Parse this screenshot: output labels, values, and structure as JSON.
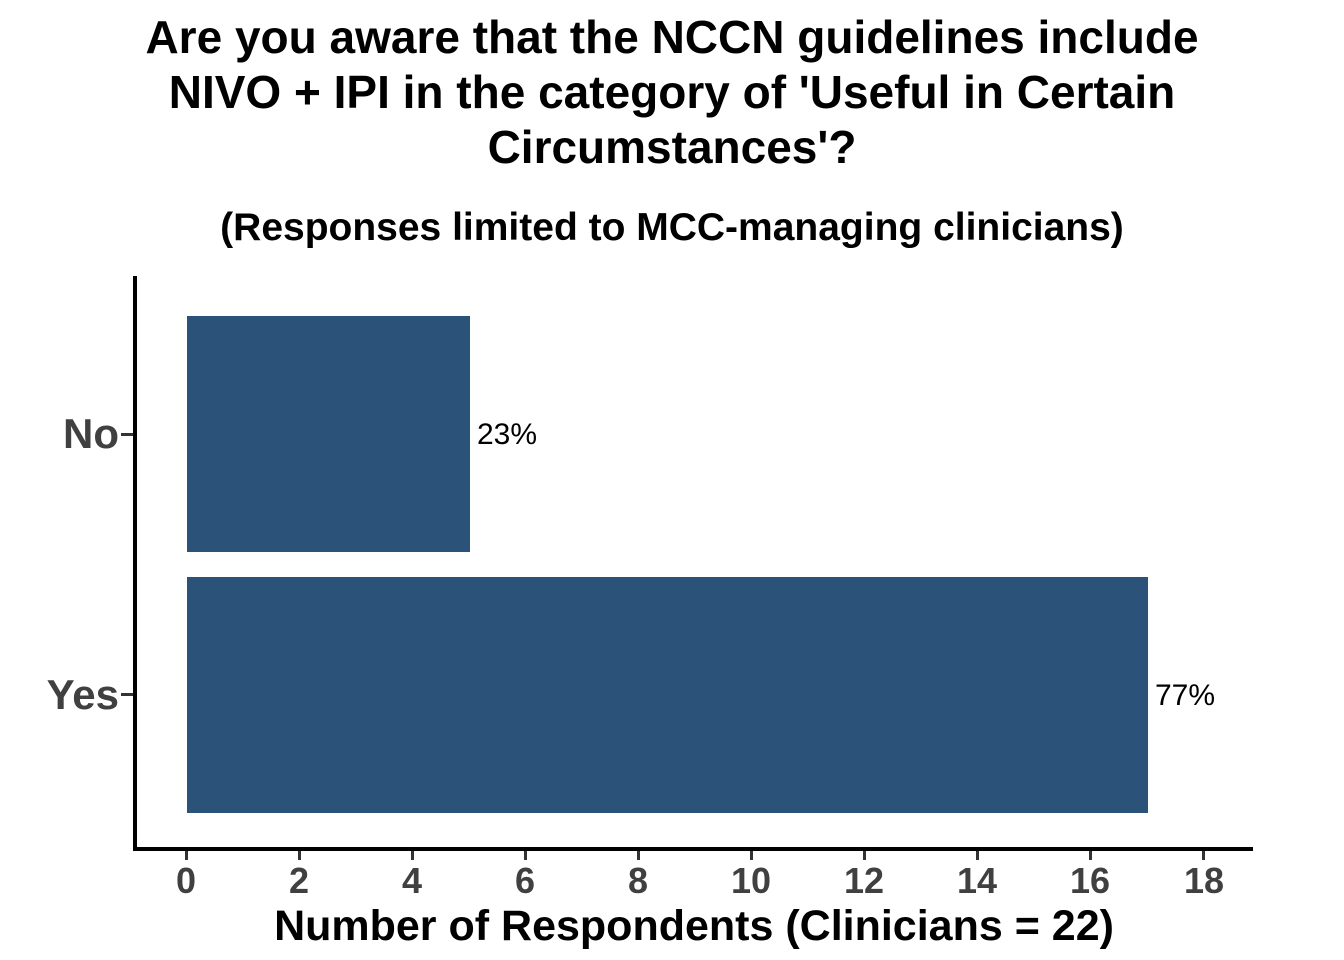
{
  "title_display": {
    "lines": [
      "Are you aware that the NCCN guidelines include",
      "NIVO + IPI in the category of 'Useful in Certain",
      "Circumstances'?"
    ]
  },
  "chart_data": {
    "type": "bar",
    "orientation": "horizontal",
    "title": "Are you aware that the NCCN guidelines include NIVO + IPI in the category of 'Useful in Certain Circumstances'?",
    "subtitle": "(Responses limited to MCC-managing clinicians)",
    "xlabel": "Number of Respondents (Clinicians = 22)",
    "ylabel": "",
    "categories": [
      "No",
      "Yes"
    ],
    "values": [
      5,
      17
    ],
    "bar_labels": [
      "23%",
      "77%"
    ],
    "total_respondents": 22,
    "xlim": [
      0,
      18
    ],
    "x_ticks": [
      0,
      2,
      4,
      6,
      8,
      10,
      12,
      14,
      16,
      18
    ],
    "grid": false,
    "legend": "none",
    "bar_color": "#2b5278",
    "axis_text_color": "#404040",
    "axis_line_color": "#000000",
    "label_text_color": "#000000"
  }
}
